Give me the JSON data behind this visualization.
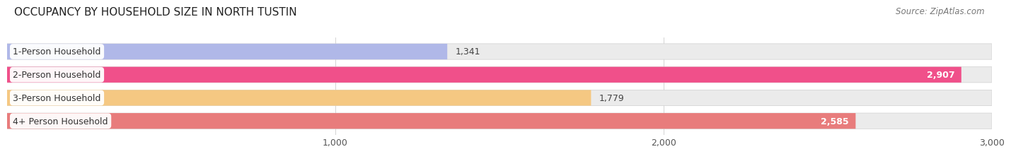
{
  "title": "OCCUPANCY BY HOUSEHOLD SIZE IN NORTH TUSTIN",
  "source": "Source: ZipAtlas.com",
  "categories": [
    "1-Person Household",
    "2-Person Household",
    "3-Person Household",
    "4+ Person Household"
  ],
  "values": [
    1341,
    2907,
    1779,
    2585
  ],
  "bar_colors": [
    "#b0b8e8",
    "#f0508a",
    "#f5c882",
    "#e87c7c"
  ],
  "bar_bg_color": "#ebebeb",
  "value_labels": [
    "1,341",
    "2,907",
    "1,779",
    "2,585"
  ],
  "value_inside": [
    false,
    true,
    false,
    true
  ],
  "xlim": [
    0,
    3000
  ],
  "xmax": 3000,
  "xticks": [
    1000,
    2000,
    3000
  ],
  "xtick_labels": [
    "1,000",
    "2,000",
    "3,000"
  ],
  "title_fontsize": 11,
  "label_fontsize": 9,
  "value_fontsize": 9,
  "source_fontsize": 8.5,
  "background_color": "#ffffff",
  "bar_height": 0.68,
  "bar_gap": 0.05,
  "figsize": [
    14.06,
    2.33
  ]
}
